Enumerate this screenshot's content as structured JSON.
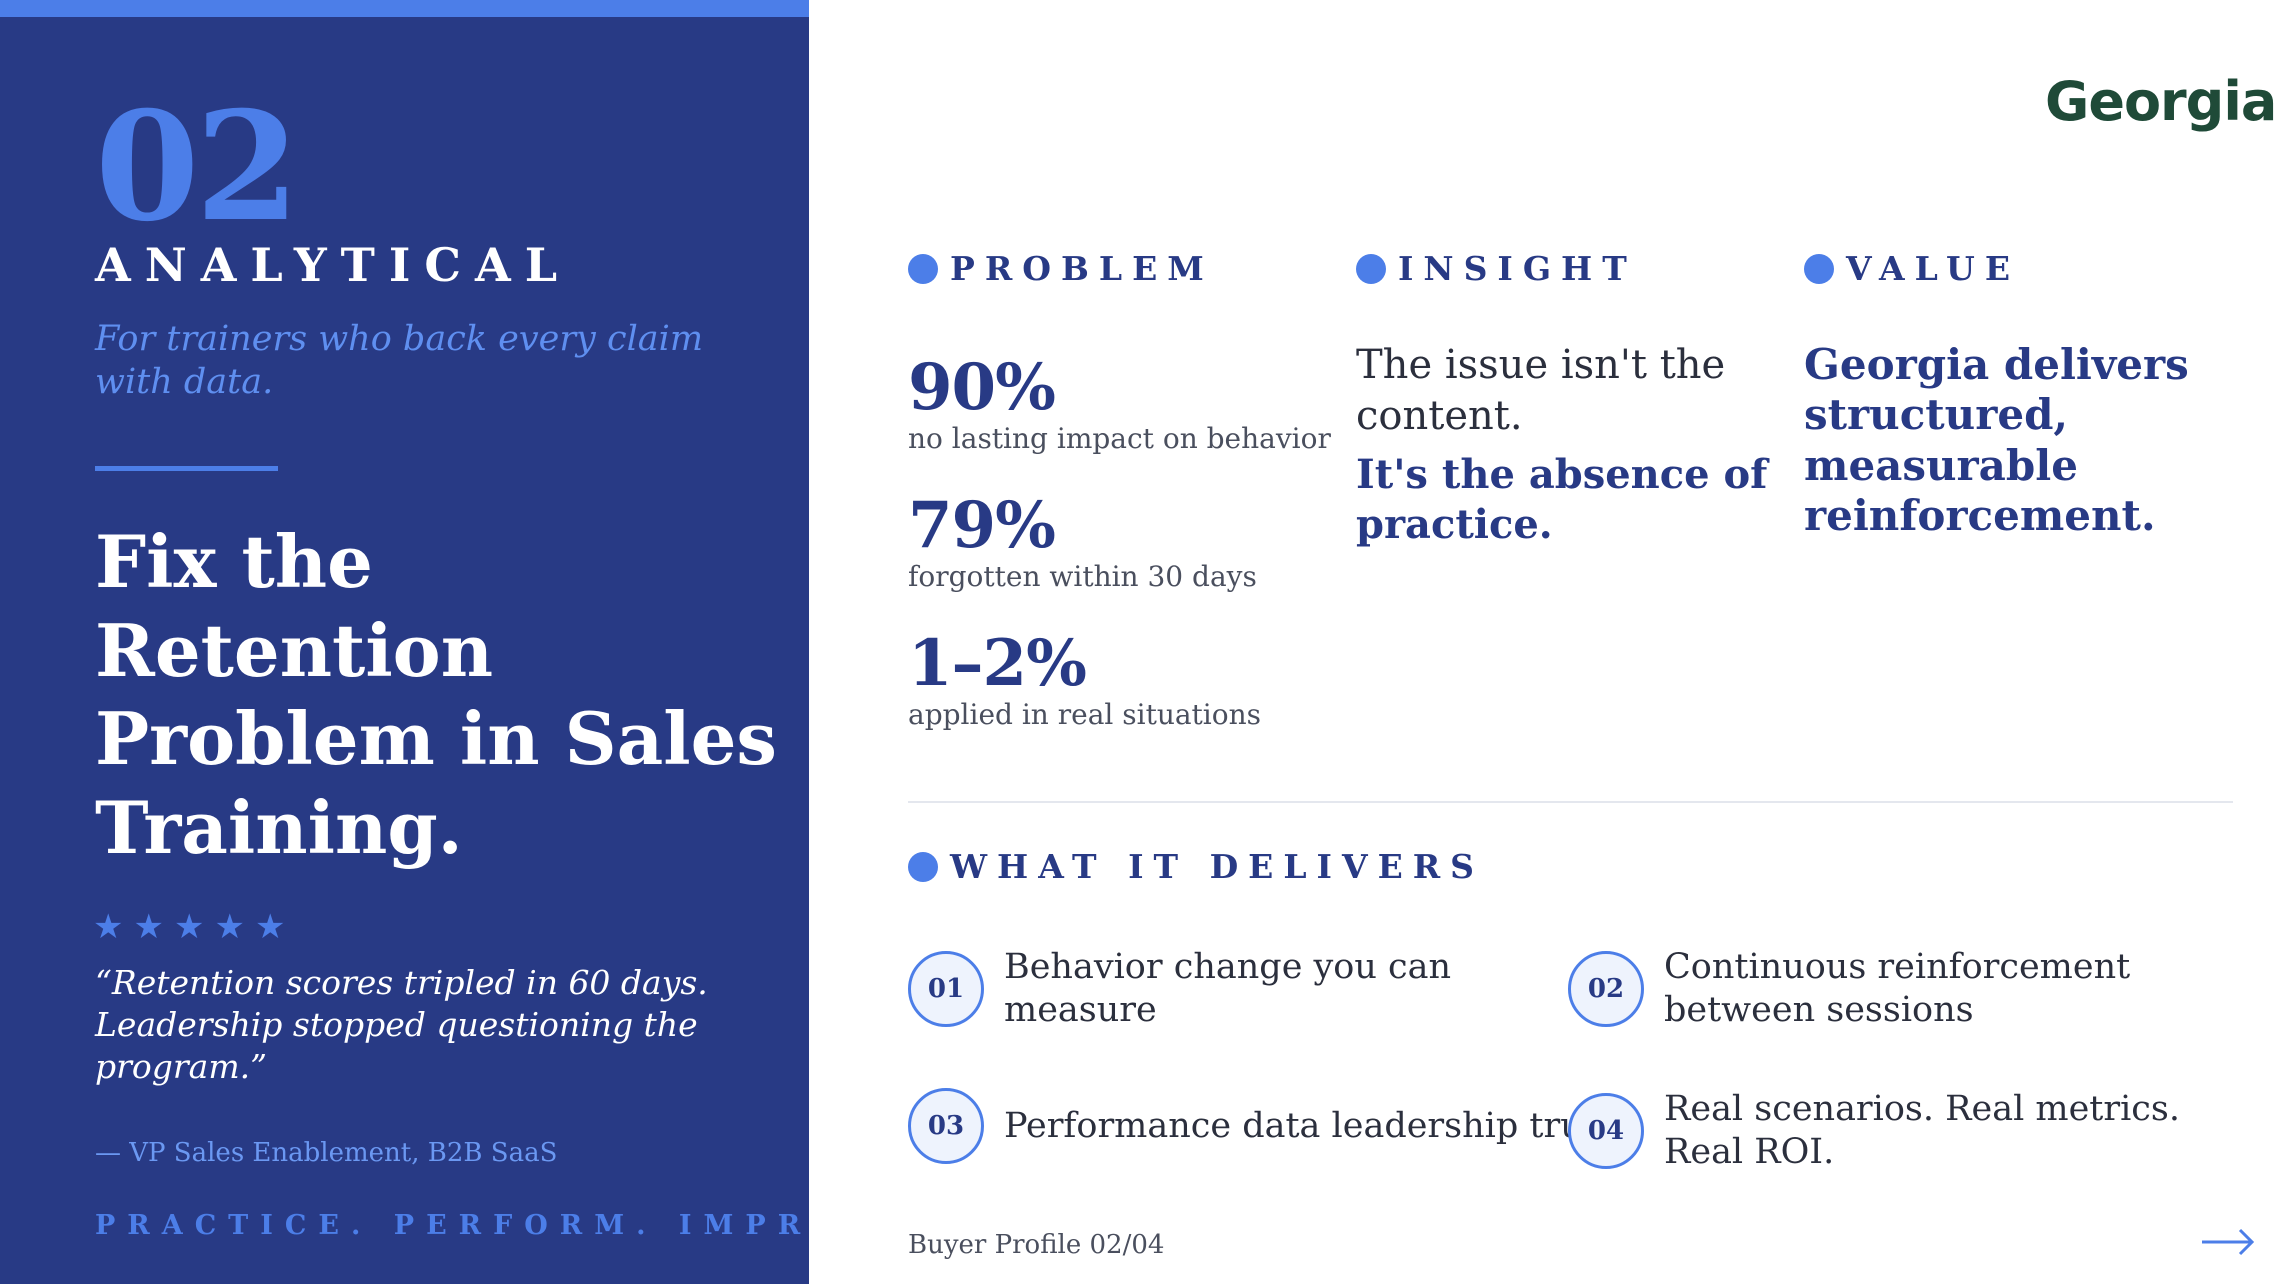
{
  "left_panel": {
    "number": "02",
    "category": "ANALYTICAL",
    "tagline": "For trainers who back every claim with data.",
    "headline": "Fix the Retention Problem in Sales Training.",
    "rating": 5,
    "stars": [
      "★",
      "★",
      "★",
      "★",
      "★"
    ],
    "quote": "“Retention scores tripled in 60 days. Leadership stopped questioning the program.”",
    "attribution": "— VP Sales Enablement, B2B SaaS",
    "motto": "PRACTICE. PERFORM. IMPROVE."
  },
  "logo": "Georgia",
  "problem": {
    "label": "PROBLEM",
    "stats": [
      {
        "value": "90%",
        "caption": "no lasting impact on behavior"
      },
      {
        "value": "79%",
        "caption": "forgotten within 30 days"
      },
      {
        "value": "1–2%",
        "caption": "applied in real situations"
      }
    ]
  },
  "insight": {
    "label": "INSIGHT",
    "text": "The issue isn't the content.",
    "emphasis": "It's the absence of practice."
  },
  "value": {
    "label": "VALUE",
    "text": "Georgia delivers structured, measurable reinforcement."
  },
  "delivers": {
    "label": "WHAT IT DELIVERS",
    "items": [
      {
        "num": "01",
        "text": "Behavior change you can measure"
      },
      {
        "num": "02",
        "text": "Continuous reinforcement between sessions"
      },
      {
        "num": "03",
        "text": "Performance data leadership trusts"
      },
      {
        "num": "04",
        "text": "Real scenarios. Real metrics. Real ROI."
      }
    ]
  },
  "footer": "Buyer Profile 02/04",
  "icons": {
    "next": "arrow-right-icon",
    "section_marker": "dot-icon",
    "rating": "star-icon"
  },
  "colors": {
    "panel": "#283a85",
    "accent": "#4c7ee8",
    "logo": "#1f4a38"
  }
}
